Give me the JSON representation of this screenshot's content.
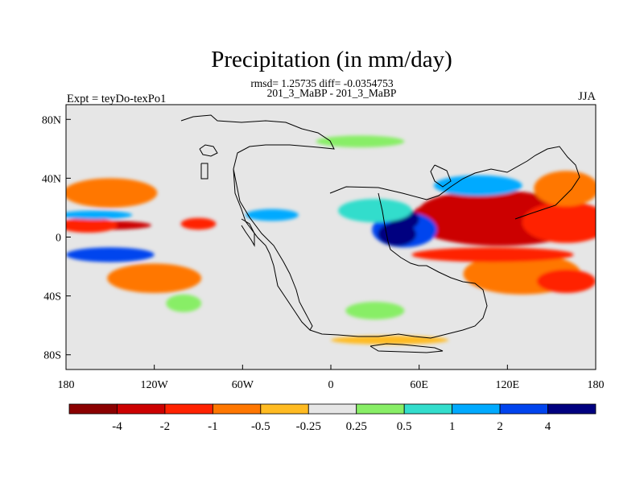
{
  "chart_data": {
    "type": "heatmap",
    "title": "Precipitation (in mm/day)",
    "subtitle_stats": "rmsd= 1.25735  diff= -0.0354753",
    "subtitle_cases": "201_3_MaBP - 201_3_MaBP",
    "left_label": "Expt = teyDo-texPo1",
    "right_label": "JJA",
    "x_ticks": [
      {
        "value": -180,
        "label": "180"
      },
      {
        "value": -120,
        "label": "120W"
      },
      {
        "value": -60,
        "label": "60W"
      },
      {
        "value": 0,
        "label": "0"
      },
      {
        "value": 60,
        "label": "60E"
      },
      {
        "value": 120,
        "label": "120E"
      },
      {
        "value": 180,
        "label": "180"
      }
    ],
    "y_ticks": [
      {
        "value": 80,
        "label": "80N"
      },
      {
        "value": 40,
        "label": "40N"
      },
      {
        "value": 0,
        "label": "0"
      },
      {
        "value": -40,
        "label": "40S"
      },
      {
        "value": -80,
        "label": "80S"
      }
    ],
    "xlim": [
      -180,
      180
    ],
    "ylim": [
      -90,
      90
    ],
    "colorbar": {
      "colors": [
        "#8b0000",
        "#cc0000",
        "#ff2200",
        "#ff7700",
        "#ffbb22",
        "#e6e6e6",
        "#88ee66",
        "#33ddcc",
        "#00aaff",
        "#0044ee",
        "#000080"
      ],
      "labels": [
        "-4",
        "-2",
        "-1",
        "-0.5",
        "-0.25",
        "0.25",
        "0.5",
        "1",
        "2",
        "4"
      ]
    },
    "fields": [
      {
        "lon": 130,
        "lat": 10,
        "level": -5,
        "rx": 48,
        "ry": 9
      },
      {
        "lon": 110,
        "lat": 18,
        "level": -4,
        "rx": 50,
        "ry": 14
      },
      {
        "lon": 115,
        "lat": 12,
        "level": -3,
        "rx": 62,
        "ry": 18
      },
      {
        "lon": 160,
        "lat": 10,
        "level": -2,
        "rx": 30,
        "ry": 14
      },
      {
        "lon": -150,
        "lat": 8,
        "level": -3,
        "rx": 28,
        "ry": 3
      },
      {
        "lon": -165,
        "lat": 8,
        "level": -2,
        "rx": 20,
        "ry": 5
      },
      {
        "lon": -90,
        "lat": 9,
        "level": -2,
        "rx": 12,
        "ry": 4
      },
      {
        "lon": -150,
        "lat": 30,
        "level": -1,
        "rx": 32,
        "ry": 10
      },
      {
        "lon": 160,
        "lat": 33,
        "level": -1,
        "rx": 22,
        "ry": 12
      },
      {
        "lon": 130,
        "lat": -25,
        "level": -1,
        "rx": 40,
        "ry": 14
      },
      {
        "lon": 160,
        "lat": -30,
        "level": -2,
        "rx": 20,
        "ry": 8
      },
      {
        "lon": -120,
        "lat": -28,
        "level": -1,
        "rx": 32,
        "ry": 10
      },
      {
        "lon": 110,
        "lat": -12,
        "level": -2,
        "rx": 55,
        "ry": 5
      },
      {
        "lon": 40,
        "lat": -70,
        "level": -0.3,
        "rx": 40,
        "ry": 3
      },
      {
        "lon": 50,
        "lat": 5,
        "level": 3,
        "rx": 22,
        "ry": 12
      },
      {
        "lon": 45,
        "lat": 2,
        "level": 5,
        "rx": 13,
        "ry": 8
      },
      {
        "lon": 50,
        "lat": 12,
        "level": 4,
        "rx": 10,
        "ry": 7
      },
      {
        "lon": 100,
        "lat": 35,
        "level": 1.5,
        "rx": 30,
        "ry": 7
      },
      {
        "lon": -150,
        "lat": -12,
        "level": 2,
        "rx": 30,
        "ry": 5
      },
      {
        "lon": -160,
        "lat": 15,
        "level": 1.5,
        "rx": 25,
        "ry": 3
      },
      {
        "lon": -40,
        "lat": 15,
        "level": 1,
        "rx": 18,
        "ry": 4
      },
      {
        "lon": 30,
        "lat": 18,
        "level": 0.6,
        "rx": 25,
        "ry": 8
      },
      {
        "lon": 30,
        "lat": -50,
        "level": 0.4,
        "rx": 20,
        "ry": 6
      },
      {
        "lon": -100,
        "lat": -45,
        "level": 0.4,
        "rx": 12,
        "ry": 6
      },
      {
        "lon": 20,
        "lat": 65,
        "level": 0.4,
        "rx": 30,
        "ry": 4
      }
    ]
  }
}
